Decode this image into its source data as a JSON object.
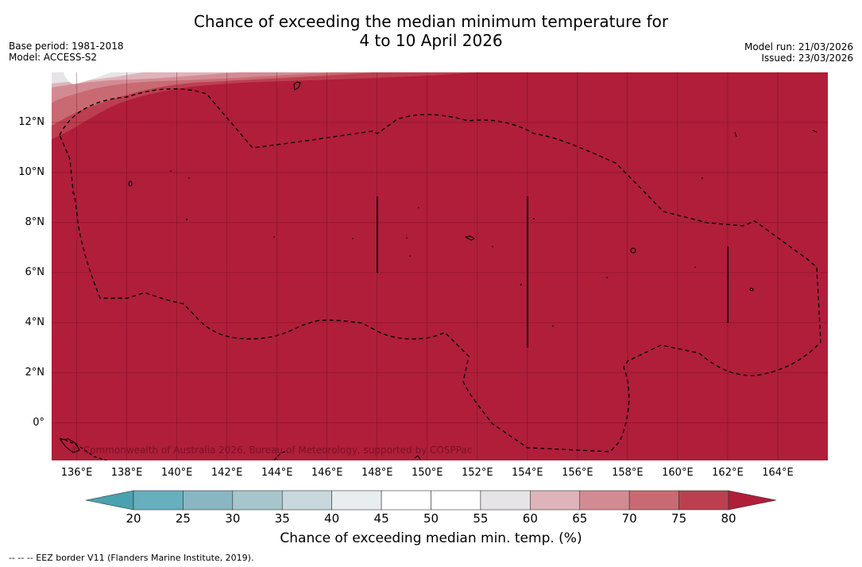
{
  "title": {
    "line1": "Chance of exceeding the median minimum temperature for",
    "line2": "4 to 10 April 2026"
  },
  "meta_left": {
    "base_period": "Base period: 1981-2018",
    "model": "Model: ACCESS-S2"
  },
  "meta_right": {
    "model_run": "Model run: 21/03/2026",
    "issued": "Issued: 23/03/2026"
  },
  "map": {
    "copyright": "© Commonwealth of Australia 2026, Bureau of Meteorology, supported by COSPPac",
    "lat_labels": [
      "12°N",
      "10°N",
      "8°N",
      "6°N",
      "4°N",
      "2°N",
      "0°"
    ],
    "lon_labels": [
      "136°E",
      "138°E",
      "140°E",
      "142°E",
      "144°E",
      "146°E",
      "148°E",
      "150°E",
      "152°E",
      "154°E",
      "156°E",
      "158°E",
      "160°E",
      "162°E",
      "164°E"
    ],
    "lat_values": [
      12,
      10,
      8,
      6,
      4,
      2,
      0
    ],
    "lon_values": [
      136,
      138,
      140,
      142,
      144,
      146,
      148,
      150,
      152,
      154,
      156,
      158,
      160,
      162,
      164
    ],
    "extent": {
      "lon_min": 135,
      "lon_max": 166,
      "lat_min": -1.5,
      "lat_max": 14
    },
    "dominant_category": "> 80"
  },
  "colorbar": {
    "title": "Chance of exceeding median min. temp. (%)",
    "ticks": [
      "20",
      "25",
      "30",
      "35",
      "40",
      "45",
      "50",
      "55",
      "60",
      "65",
      "70",
      "75",
      "80"
    ],
    "bin_colors": [
      "#67aebe",
      "#88b7c3",
      "#a6c6cc",
      "#c8d8dc",
      "#e8eef0",
      "#ffffff",
      "#ffffff",
      "#e6e4e6",
      "#deb4ba",
      "#d38b93",
      "#c96a73",
      "#bc3f50"
    ],
    "under_color": "#4aa1b0",
    "over_color": "#b01e3a"
  },
  "footnote": "--  --  -- EEZ border V11 (Flanders Marine Institute, 2019)."
}
